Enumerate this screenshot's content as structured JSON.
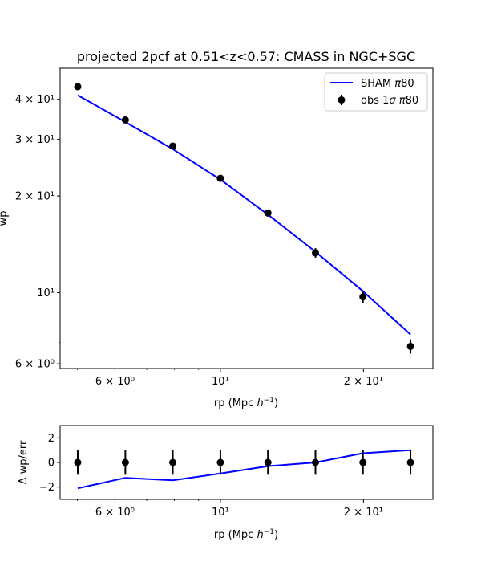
{
  "chart_data": [
    {
      "type": "line",
      "title": "projected 2pcf at 0.51<z<0.57: CMASS in NGC+SGC",
      "xlabel": "rp (Mpc h⁻¹)",
      "ylabel": "wp",
      "xscale": "log",
      "yscale": "log",
      "xlim": [
        4.6,
        28.0
      ],
      "ylim": [
        5.8,
        50.0
      ],
      "x_ticks": [
        {
          "value": 6,
          "label": "6 × 10⁰"
        },
        {
          "value": 10,
          "label": "10¹"
        },
        {
          "value": 20,
          "label": "2 × 10¹"
        }
      ],
      "y_ticks": [
        {
          "value": 6,
          "label": "6 × 10⁰"
        },
        {
          "value": 10,
          "label": "10¹"
        },
        {
          "value": 20,
          "label": "2 × 10¹"
        },
        {
          "value": 30,
          "label": "3 × 10¹"
        },
        {
          "value": 40,
          "label": "4 × 10¹"
        }
      ],
      "legend": {
        "placement": "top-right",
        "entries": [
          "SHAM π80",
          "obs 1σ π80"
        ]
      },
      "series": [
        {
          "name": "SHAM π80",
          "style": "line",
          "color": "#0000ff",
          "x": [
            5.01,
            6.31,
            7.94,
            10.0,
            12.59,
            15.85,
            19.95,
            25.12
          ],
          "y": [
            41.2,
            34.0,
            28.0,
            22.5,
            17.5,
            13.4,
            10.1,
            7.4
          ]
        },
        {
          "name": "obs 1σ π80",
          "style": "errorbar",
          "color": "#000000",
          "x": [
            5.01,
            6.31,
            7.94,
            10.0,
            12.59,
            15.85,
            19.95,
            25.12
          ],
          "y": [
            43.8,
            34.5,
            28.6,
            22.7,
            17.7,
            13.3,
            9.7,
            6.8
          ],
          "err": [
            0.5,
            0.55,
            0.5,
            0.5,
            0.45,
            0.45,
            0.4,
            0.35
          ]
        }
      ]
    },
    {
      "type": "line",
      "title": "",
      "xlabel": "rp (Mpc h⁻¹)",
      "ylabel": "Δ wp/err",
      "xscale": "log",
      "yscale": "linear",
      "xlim": [
        4.6,
        28.0
      ],
      "ylim": [
        -3.0,
        3.0
      ],
      "x_ticks": [
        {
          "value": 6,
          "label": "6 × 10⁰"
        },
        {
          "value": 10,
          "label": "10¹"
        },
        {
          "value": 20,
          "label": "2 × 10¹"
        }
      ],
      "y_ticks": [
        {
          "value": -2,
          "label": "−2"
        },
        {
          "value": 0,
          "label": "0"
        },
        {
          "value": 2,
          "label": "2"
        }
      ],
      "series": [
        {
          "name": "SHAM π80",
          "style": "line",
          "color": "#0000ff",
          "x": [
            5.01,
            6.31,
            7.94,
            10.0,
            12.59,
            15.85,
            19.95,
            25.12
          ],
          "y": [
            -2.1,
            -1.25,
            -1.45,
            -0.9,
            -0.3,
            0.0,
            0.75,
            1.0
          ]
        },
        {
          "name": "obs 1σ π80",
          "style": "errorbar",
          "color": "#000000",
          "x": [
            5.01,
            6.31,
            7.94,
            10.0,
            12.59,
            15.85,
            19.95,
            25.12
          ],
          "y": [
            0,
            0,
            0,
            0,
            0,
            0,
            0,
            0
          ],
          "err": [
            1,
            1,
            1,
            1,
            1,
            1,
            1,
            1
          ]
        }
      ]
    }
  ]
}
